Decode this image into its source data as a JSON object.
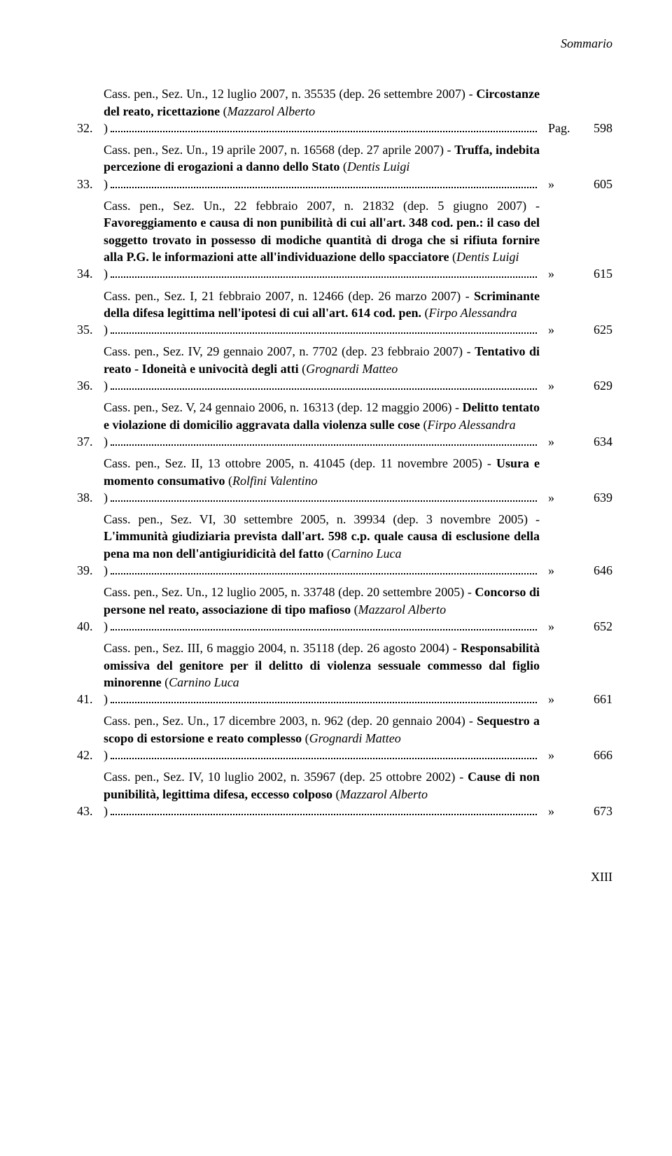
{
  "header": "Sommario",
  "footer": "XIII",
  "page_prefix_first": "Pag.",
  "page_prefix_rest": "»",
  "entries": [
    {
      "num": "32.",
      "pre": "Cass. pen., Sez. Un., 12 luglio 2007, n. 35535 (dep. 26 settembre 2007) - ",
      "bold": "Circostanze del reato, ricettazione",
      "post_open": " (",
      "italic": "Mazzarol Alberto",
      "post_close": ")",
      "page": "598"
    },
    {
      "num": "33.",
      "pre": "Cass. pen., Sez. Un., 19 aprile 2007, n. 16568 (dep. 27 aprile 2007) - ",
      "bold": "Truffa, indebita percezione di erogazioni a danno dello Stato",
      "post_open": " (",
      "italic": "Dentis Luigi",
      "post_close": ")",
      "page": "605"
    },
    {
      "num": "34.",
      "pre": "Cass. pen., Sez. Un., 22 febbraio 2007, n. 21832 (dep. 5 giugno 2007) - ",
      "bold": "Favoreggiamento e causa di non punibilità di cui all'art. 348 cod. pen.: il caso del soggetto trovato in possesso di modiche quantità di droga che si rifiuta fornire alla P.G. le informazioni atte all'individuazione dello spacciatore",
      "post_open": " (",
      "italic": "Dentis Luigi",
      "post_close": ")",
      "page": "615"
    },
    {
      "num": "35.",
      "pre": "Cass. pen., Sez. I, 21 febbraio 2007, n. 12466 (dep. 26 marzo 2007) - ",
      "bold": "Scriminante della difesa legittima nell'ipotesi di cui all'art. 614 cod. pen.",
      "post_open": " (",
      "italic": "Firpo Alessandra",
      "post_close": ")",
      "page": "625"
    },
    {
      "num": "36.",
      "pre": "Cass. pen., Sez. IV, 29 gennaio 2007, n. 7702 (dep. 23 febbraio 2007) - ",
      "bold": "Tentativo di reato - Idoneità e univocità degli atti",
      "post_open": " (",
      "italic": "Grognardi Matteo",
      "post_close": ")",
      "page": "629"
    },
    {
      "num": "37.",
      "pre": "Cass. pen., Sez. V, 24 gennaio 2006, n. 16313 (dep. 12 maggio 2006) - ",
      "bold": "Delitto tentato e violazione di domicilio aggravata dalla violenza sulle cose",
      "post_open": " (",
      "italic": "Firpo Alessandra",
      "post_close": ")",
      "page": "634"
    },
    {
      "num": "38.",
      "pre": "Cass. pen., Sez. II, 13 ottobre 2005, n. 41045 (dep. 11 novembre 2005) - ",
      "bold": "Usura e momento consumativo",
      "post_open": " (",
      "italic": "Rolfini Valentino",
      "post_close": ")",
      "page": "639"
    },
    {
      "num": "39.",
      "pre": "Cass. pen., Sez. VI, 30 settembre 2005, n. 39934 (dep. 3 novembre 2005) - ",
      "bold": "L'immunità giudiziaria prevista dall'art. 598 c.p. quale causa di esclusione della pena ma non dell'antigiuridicità del fatto",
      "post_open": " (",
      "italic": "Carnino Luca",
      "post_close": ")",
      "page": "646"
    },
    {
      "num": "40.",
      "pre": "Cass. pen., Sez. Un., 12 luglio 2005, n. 33748 (dep. 20 settembre 2005) - ",
      "bold": "Concorso di persone nel reato, associazione di tipo mafioso",
      "post_open": " (",
      "italic": "Mazzarol Alberto",
      "post_close": ")",
      "page": "652"
    },
    {
      "num": "41.",
      "pre": "Cass. pen., Sez. III, 6 maggio 2004, n. 35118 (dep. 26 agosto 2004) - ",
      "bold": "Responsabilità omissiva del genitore per il delitto di violenza sessuale commesso dal figlio minorenne",
      "post_open": " (",
      "italic": "Carnino Luca",
      "post_close": ")",
      "page": "661"
    },
    {
      "num": "42.",
      "pre": "Cass. pen., Sez. Un., 17 dicembre 2003, n. 962 (dep. 20 gennaio 2004) - ",
      "bold": "Sequestro a scopo di estorsione e reato complesso",
      "post_open": " (",
      "italic": "Grognardi Matteo",
      "post_close": ")",
      "page": "666"
    },
    {
      "num": "43.",
      "pre": "Cass. pen., Sez. IV, 10 luglio 2002, n. 35967 (dep. 25 ottobre 2002) - ",
      "bold": "Cause di non punibilità, legittima difesa, eccesso colposo",
      "post_open": " (",
      "italic": "Mazzarol Alberto",
      "post_close": ")",
      "page": "673"
    }
  ]
}
